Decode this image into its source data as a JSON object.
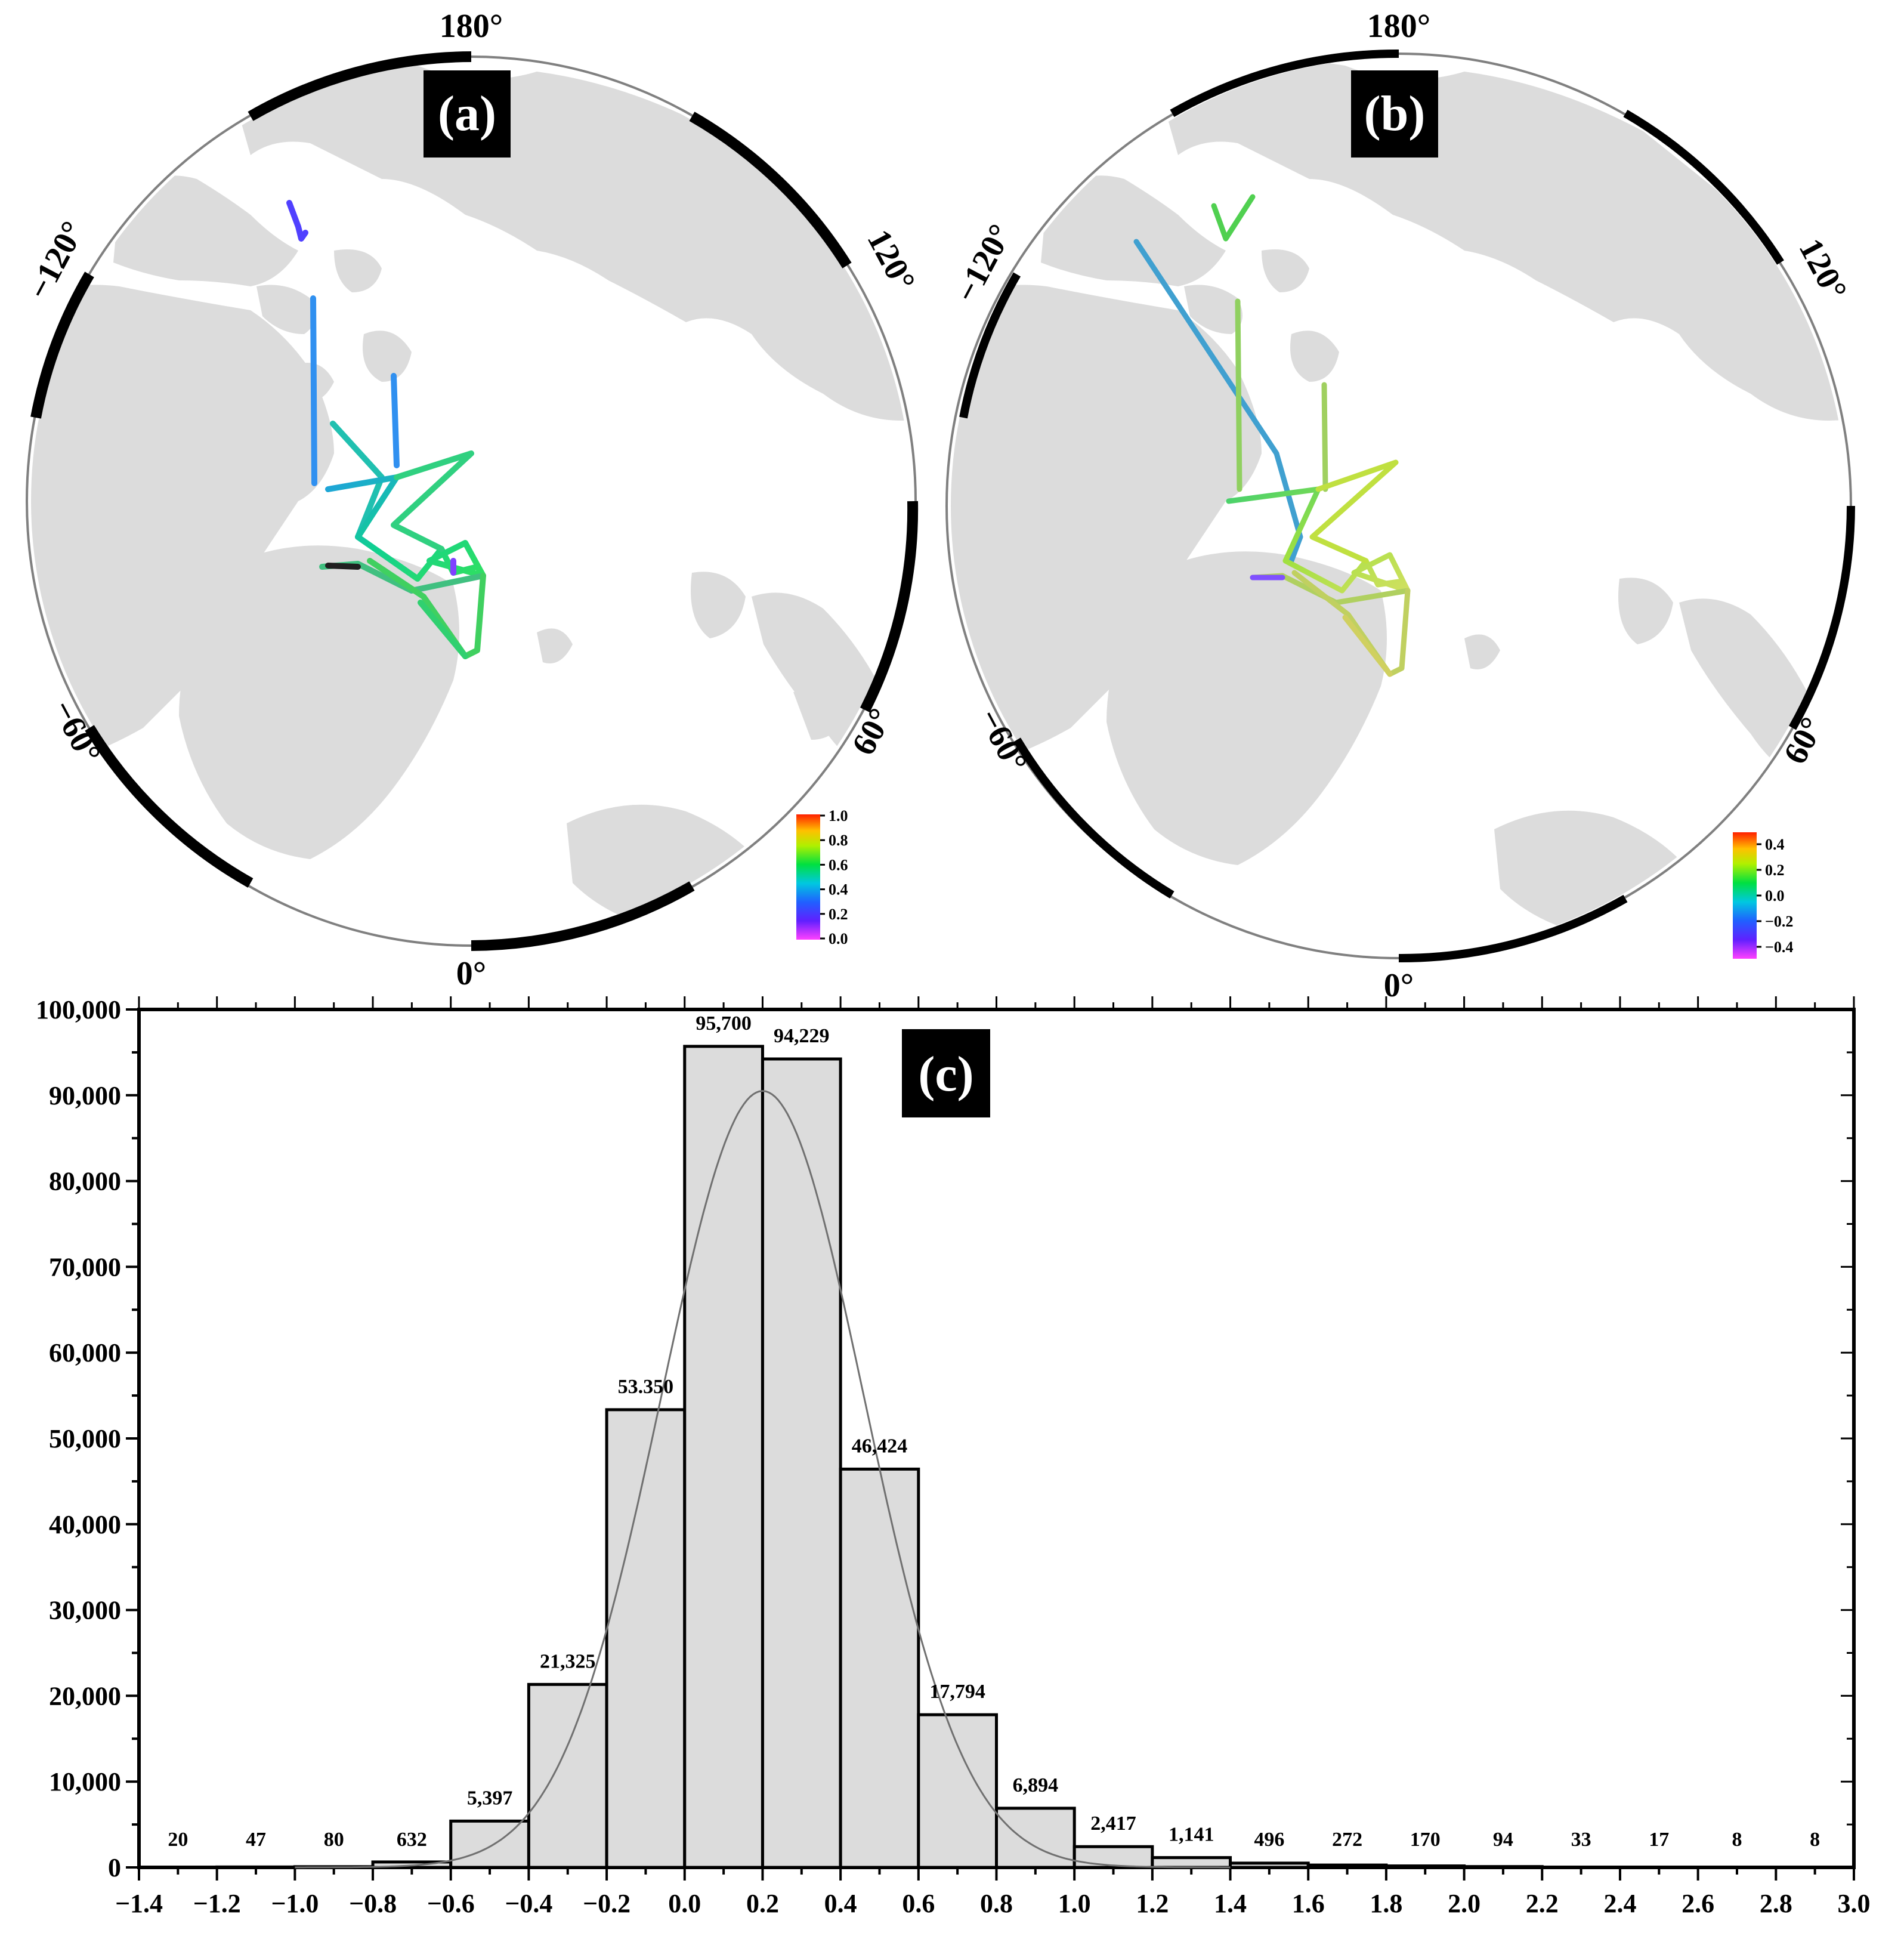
{
  "panel_a": {
    "label": "(a)",
    "lon_labels": {
      "top": "180°",
      "left": "−120°",
      "right": "120°",
      "lower_left": "−60°",
      "lower_right": "60°",
      "bottom": "0°"
    },
    "colorbar": {
      "ticks": [
        "1.0",
        "0.8",
        "0.6",
        "0.4",
        "0.2",
        "0.0"
      ]
    }
  },
  "panel_b": {
    "label": "(b)",
    "lon_labels": {
      "top": "180°",
      "left": "−120°",
      "right": "120°",
      "lower_left": "−60°",
      "lower_right": "60°",
      "bottom": "0°"
    },
    "colorbar": {
      "ticks": [
        "0.4",
        "0.2",
        "0.0",
        "−0.2",
        "−0.4"
      ]
    }
  },
  "panel_c": {
    "label": "(c)"
  },
  "chart_data": {
    "type": "bar",
    "title": "",
    "xlabel": "",
    "ylabel": "",
    "xlim": [
      -1.4,
      3.0
    ],
    "ylim": [
      0,
      100000
    ],
    "x_ticks": [
      "−1.4",
      "−1.2",
      "−1.0",
      "−0.8",
      "−0.6",
      "−0.4",
      "−0.2",
      "0.0",
      "0.2",
      "0.4",
      "0.6",
      "0.8",
      "1.0",
      "1.2",
      "1.4",
      "1.6",
      "1.8",
      "2.0",
      "2.2",
      "2.4",
      "2.6",
      "2.8",
      "3.0"
    ],
    "y_ticks": [
      "0",
      "10,000",
      "20,000",
      "30,000",
      "40,000",
      "50,000",
      "60,000",
      "70,000",
      "80,000",
      "90,000",
      "100,000"
    ],
    "bins": [
      {
        "from": -1.4,
        "to": -1.2,
        "value": 20,
        "label": "20"
      },
      {
        "from": -1.2,
        "to": -1.0,
        "value": 47,
        "label": "47"
      },
      {
        "from": -1.0,
        "to": -0.8,
        "value": 80,
        "label": "80"
      },
      {
        "from": -0.8,
        "to": -0.6,
        "value": 632,
        "label": "632"
      },
      {
        "from": -0.6,
        "to": -0.4,
        "value": 5397,
        "label": "5,397"
      },
      {
        "from": -0.4,
        "to": -0.2,
        "value": 21325,
        "label": "21,325"
      },
      {
        "from": -0.2,
        "to": 0.0,
        "value": 53350,
        "label": "53.350"
      },
      {
        "from": 0.0,
        "to": 0.2,
        "value": 95700,
        "label": "95,700"
      },
      {
        "from": 0.2,
        "to": 0.4,
        "value": 94229,
        "label": "94,229"
      },
      {
        "from": 0.4,
        "to": 0.6,
        "value": 46424,
        "label": "46,424"
      },
      {
        "from": 0.6,
        "to": 0.8,
        "value": 17794,
        "label": "17,794"
      },
      {
        "from": 0.8,
        "to": 1.0,
        "value": 6894,
        "label": "6,894"
      },
      {
        "from": 1.0,
        "to": 1.2,
        "value": 2417,
        "label": "2,417"
      },
      {
        "from": 1.2,
        "to": 1.4,
        "value": 1141,
        "label": "1,141"
      },
      {
        "from": 1.4,
        "to": 1.6,
        "value": 496,
        "label": "496"
      },
      {
        "from": 1.6,
        "to": 1.8,
        "value": 272,
        "label": "272"
      },
      {
        "from": 1.8,
        "to": 2.0,
        "value": 170,
        "label": "170"
      },
      {
        "from": 2.0,
        "to": 2.2,
        "value": 94,
        "label": "94"
      },
      {
        "from": 2.2,
        "to": 2.4,
        "value": 33,
        "label": "33"
      },
      {
        "from": 2.4,
        "to": 2.6,
        "value": 17,
        "label": "17"
      },
      {
        "from": 2.6,
        "to": 2.8,
        "value": 8,
        "label": "8"
      },
      {
        "from": 2.8,
        "to": 3.0,
        "value": 8,
        "label": "8"
      }
    ],
    "fit_curve": {
      "type": "normal",
      "mean": 0.2,
      "peak": 90500,
      "sigma": 0.26
    }
  }
}
